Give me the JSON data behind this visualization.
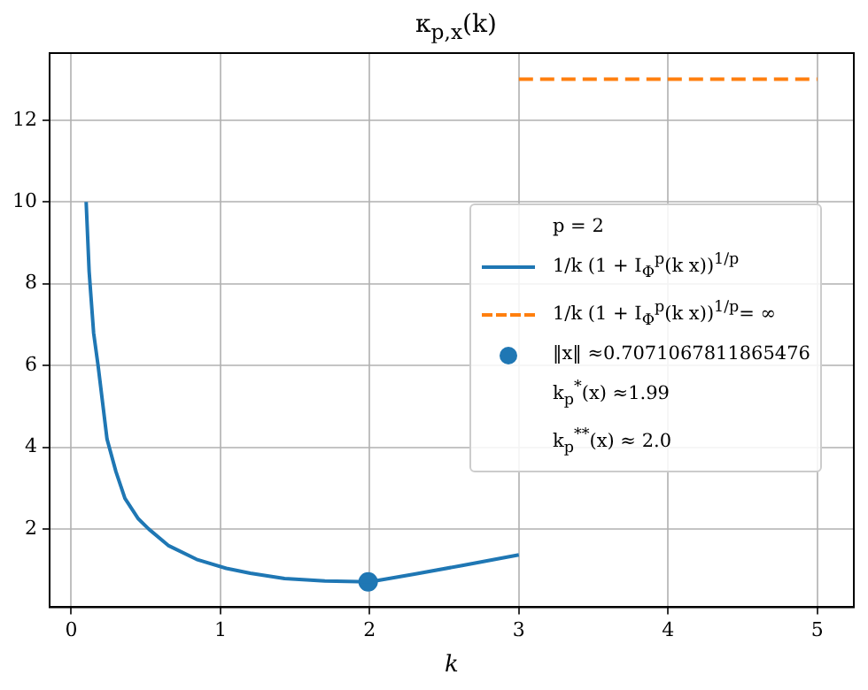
{
  "chart_data": {
    "type": "line",
    "title": "κ$_{p,x}$(k)",
    "xlabel": "k",
    "legend_title": "p = 2",
    "annotations": [
      "k$_{p}$$^{*}$(x) ≈1.99",
      "k$_{p}$$^{**}$(x) ≈ 2.0"
    ],
    "xlim": [
      -0.145,
      5.245
    ],
    "xticks": [
      0,
      1,
      2,
      3,
      4,
      5
    ],
    "ylim": [
      0.09,
      13.64
    ],
    "yticks": [
      2,
      4,
      6,
      8,
      10,
      12
    ],
    "grid": true,
    "legend": "right",
    "series": [
      {
        "name": "1/k (1 + I$_{Φ}$$^{p}$(k x))$^{1/p}$",
        "color": "#1f77b4",
        "type": "line",
        "line_style": "solid",
        "x": [
          0.1,
          0.12,
          0.15,
          0.18,
          0.24,
          0.3,
          0.36,
          0.45,
          0.52,
          0.65,
          0.84,
          1.04,
          1.2,
          1.43,
          1.7,
          2.0,
          2.3,
          2.62,
          3.0
        ],
        "values": [
          10,
          8.3,
          6.8,
          6.0,
          4.2,
          3.4,
          2.75,
          2.25,
          2.0,
          1.6,
          1.26,
          1.04,
          0.92,
          0.79,
          0.73,
          0.71,
          0.9,
          1.11,
          1.37
        ]
      },
      {
        "name": "1/k (1 + I$_{Φ}$$^{p}$(k x))$^{1/p}$= ∞",
        "color": "#ff7f0e",
        "type": "line",
        "line_style": "dashed",
        "x": [
          3,
          5
        ],
        "values": [
          13,
          13
        ]
      },
      {
        "name": "‖x‖ ≈0.7071067811865476",
        "color": "#1f77b4",
        "type": "scatter",
        "marker": "circle",
        "x": [
          1.99
        ],
        "values": [
          0.71
        ]
      }
    ]
  }
}
